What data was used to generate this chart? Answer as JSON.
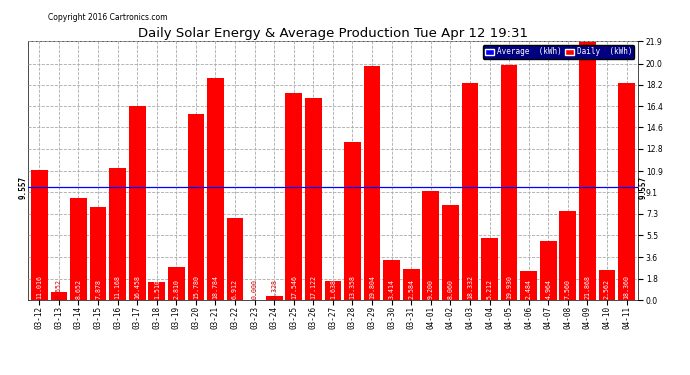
{
  "title": "Daily Solar Energy & Average Production Tue Apr 12 19:31",
  "copyright": "Copyright 2016 Cartronics.com",
  "categories": [
    "03-12",
    "03-13",
    "03-14",
    "03-15",
    "03-16",
    "03-17",
    "03-18",
    "03-19",
    "03-20",
    "03-21",
    "03-22",
    "03-23",
    "03-24",
    "03-25",
    "03-26",
    "03-27",
    "03-28",
    "03-29",
    "03-30",
    "03-31",
    "04-01",
    "04-02",
    "04-03",
    "04-04",
    "04-05",
    "04-06",
    "04-07",
    "04-08",
    "04-09",
    "04-10",
    "04-11"
  ],
  "values": [
    11.016,
    0.652,
    8.652,
    7.878,
    11.168,
    16.458,
    1.51,
    2.81,
    15.78,
    18.784,
    6.912,
    0.0,
    0.328,
    17.546,
    17.122,
    1.638,
    13.358,
    19.804,
    3.414,
    2.584,
    9.2,
    8.06,
    18.332,
    5.212,
    19.93,
    2.484,
    4.964,
    7.56,
    21.868,
    2.562,
    18.36
  ],
  "average": 9.557,
  "bar_color": "#ff0000",
  "avg_line_color": "#0000ff",
  "background_color": "#ffffff",
  "plot_bg_color": "#ffffff",
  "grid_color": "#aaaaaa",
  "ylim": [
    0.0,
    21.9
  ],
  "yticks": [
    0.0,
    1.8,
    3.6,
    5.5,
    7.3,
    9.1,
    10.9,
    12.8,
    14.6,
    16.4,
    18.2,
    20.0,
    21.9
  ],
  "title_fontsize": 9.5,
  "tick_fontsize": 5.5,
  "value_fontsize": 4.8,
  "avg_label": "9.557",
  "legend_avg_label": "Average  (kWh)",
  "legend_daily_label": "Daily  (kWh)"
}
